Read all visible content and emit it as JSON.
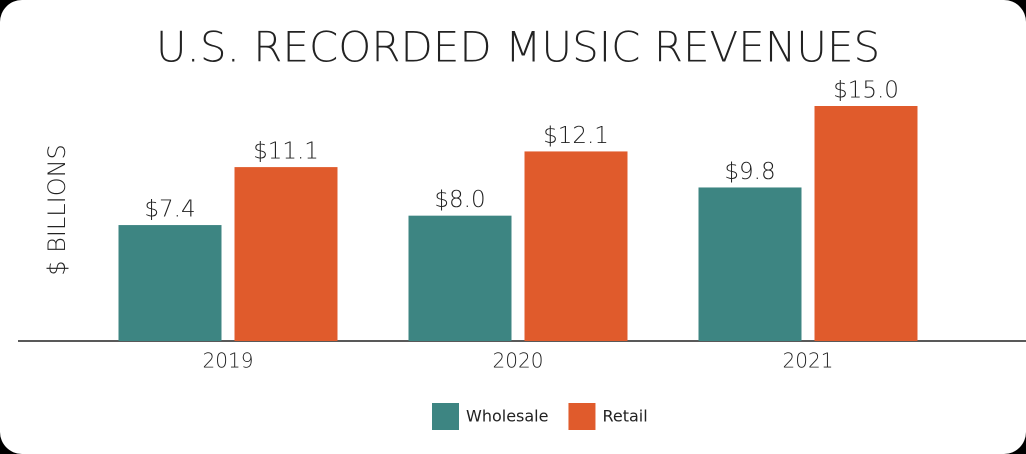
{
  "chart_data": {
    "type": "bar",
    "title": "U.S. RECORDED MUSIC REVENUES",
    "y_label": "$ BILLIONS",
    "categories": [
      "2019",
      "2020",
      "2021"
    ],
    "series": [
      {
        "name": "Wholesale",
        "color": "#3d8582",
        "values": [
          7.4,
          8.0,
          9.8
        ],
        "value_labels": [
          "$7.4",
          "$8.0",
          "$9.8"
        ]
      },
      {
        "name": "Retail",
        "color": "#e05b2c",
        "values": [
          11.1,
          12.1,
          15.0
        ],
        "value_labels": [
          "$11.1",
          "$12.1",
          "$15.0"
        ]
      }
    ],
    "legend": "bottom"
  }
}
